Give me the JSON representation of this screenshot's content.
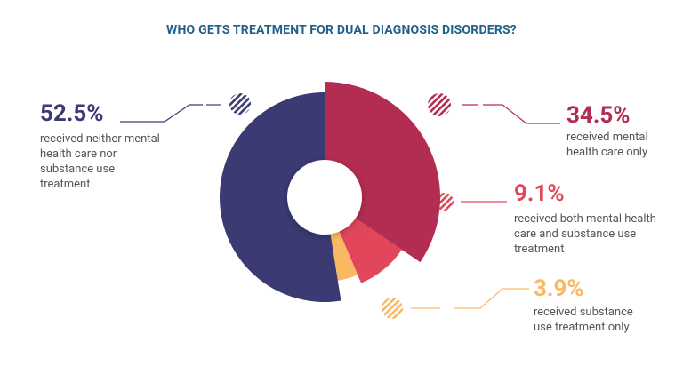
{
  "chart_data": {
    "type": "pie",
    "title": "WHO GETS TREATMENT FOR DUAL DIAGNOSIS DISORDERS?",
    "categories": [
      "received mental health care only",
      "received both mental health care and substance use treatment",
      "received substance use treatment only",
      "received neither mental health care nor substance use treatment"
    ],
    "values": [
      34.5,
      9.1,
      3.9,
      52.5
    ],
    "value_labels": [
      "34.5%",
      "9.1%",
      "3.9%",
      "52.5%"
    ],
    "colors": [
      "#b32c52",
      "#e2465a",
      "#fbb863",
      "#3b3a72"
    ]
  }
}
